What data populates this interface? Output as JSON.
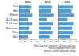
{
  "chart_data": [
    {
      "type": "bar",
      "orientation": "horizontal",
      "title": "2000",
      "categories": [
        "Total",
        "Men",
        "Women",
        "16-24 years",
        "25-54 years",
        "55 and over",
        "White",
        "Black"
      ],
      "values": [
        42,
        38,
        47,
        30,
        45,
        36,
        44,
        33
      ],
      "color": "#4f9bd6",
      "xlim": [
        0,
        60
      ],
      "xticks": [
        0,
        20,
        40,
        60
      ],
      "grid": false
    },
    {
      "type": "bar",
      "orientation": "horizontal",
      "title": "2010",
      "categories": [
        "Total",
        "Men",
        "Women",
        "16-24 years",
        "25-54 years",
        "55 and over",
        "White",
        "Black"
      ],
      "values": [
        46,
        41,
        51,
        28,
        49,
        42,
        48,
        37
      ],
      "color": "#4f9bd6",
      "xlim": [
        0,
        60
      ],
      "xticks": [
        0,
        20,
        40,
        60
      ],
      "grid": false,
      "tick_labels": "x"
    },
    {
      "type": "bar",
      "orientation": "horizontal",
      "title": "2020",
      "categories": [
        "Total",
        "Men",
        "Women",
        "16-24 years",
        "25-54 years",
        "55 and over",
        "White",
        "Black"
      ],
      "values": [
        50,
        45,
        55,
        31,
        53,
        47,
        52,
        41
      ],
      "color": "#4f9bd6",
      "xlim": [
        0,
        60
      ],
      "xticks": [
        0,
        20,
        40,
        60
      ],
      "grid": false,
      "tick_labels": "x",
      "annotations": [
        "Note: Data refer to persons 16 years and over.",
        "Percent of group in each year.",
        "Source: Current Population Survey."
      ]
    }
  ]
}
